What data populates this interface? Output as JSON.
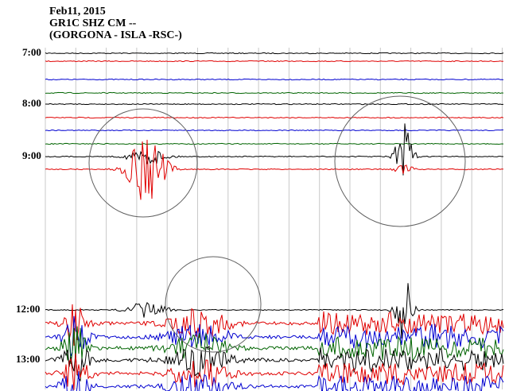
{
  "header": {
    "date": "Feb11, 2015",
    "station": "GR1C SHZ CM --",
    "location": "(GORGONA - ISLA -RSC-)"
  },
  "chart_data": {
    "type": "line",
    "title": "Feb11, 2015",
    "subtitle": "GR1C SHZ CM -- (GORGONA - ISLA -RSC-)",
    "y_tick_labels": [
      "7:00",
      "8:00",
      "9:00",
      "12:00",
      "13:00"
    ],
    "grid": "vertical minute gridlines",
    "trace_colors": [
      "#000000",
      "#e00000",
      "#0000d0",
      "#006400"
    ],
    "trace_rows": [
      {
        "color": "#000000",
        "activity": "quiet"
      },
      {
        "color": "#e00000",
        "activity": "quiet"
      },
      {
        "color": "#0000d0",
        "activity": "quiet"
      },
      {
        "color": "#006400",
        "activity": "quiet"
      },
      {
        "color": "#000000",
        "activity": "quiet"
      },
      {
        "color": "#e00000",
        "activity": "quiet"
      },
      {
        "color": "#0000d0",
        "activity": "quiet"
      },
      {
        "color": "#006400",
        "activity": "quiet"
      },
      {
        "color": "#000000",
        "activity": "event"
      },
      {
        "color": "#e00000",
        "activity": "event"
      },
      {
        "color": "#000000",
        "activity": "event"
      },
      {
        "color": "#e00000",
        "activity": "noisy"
      },
      {
        "color": "#0000d0",
        "activity": "noisy"
      },
      {
        "color": "#006400",
        "activity": "noisy"
      },
      {
        "color": "#000000",
        "activity": "noisy"
      },
      {
        "color": "#e00000",
        "activity": "noisy"
      },
      {
        "color": "#0000d0",
        "activity": "noisy"
      }
    ],
    "annotations": [
      "circled event near 8:30-9:30",
      "circled event near 8:30-9:30 (right)",
      "circled event near 12:00"
    ]
  }
}
